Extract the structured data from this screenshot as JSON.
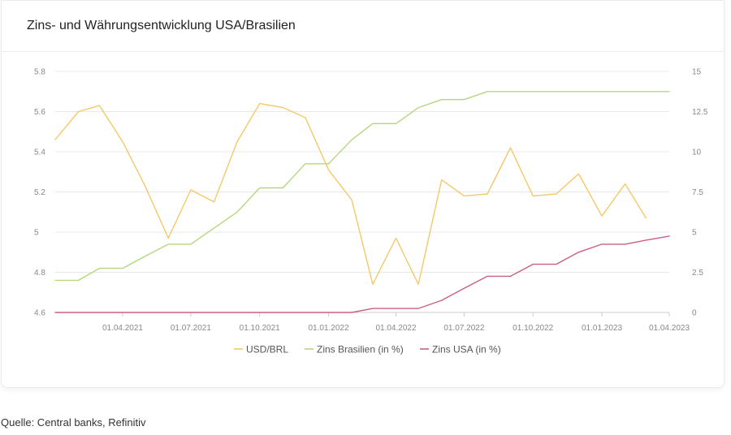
{
  "title": "Zins- und Währungsentwicklung USA/Brasilien",
  "source": "Quelle: Central banks, Refinitiv",
  "chart_data": {
    "type": "line",
    "x_tick_labels": [
      "01.04.2021",
      "01.07.2021",
      "01.10.2021",
      "01.01.2022",
      "01.04.2022",
      "01.07.2022",
      "01.10.2022",
      "01.01.2023",
      "01.04.2023"
    ],
    "x_tick_dates": [
      "2021-04-01",
      "2021-07-01",
      "2021-10-01",
      "2022-01-01",
      "2022-04-01",
      "2022-07-01",
      "2022-10-01",
      "2023-01-01",
      "2023-04-01"
    ],
    "x_range": [
      "2021-01-01",
      "2023-04-01"
    ],
    "y_left": {
      "ylim": [
        4.6,
        5.8
      ],
      "ticks": [
        "4.6",
        "4.8",
        "5",
        "5.2",
        "5.4",
        "5.6",
        "5.8"
      ],
      "tick_values": [
        4.6,
        4.8,
        5.0,
        5.2,
        5.4,
        5.6,
        5.8
      ]
    },
    "y_right": {
      "ylim": [
        0,
        15
      ],
      "ticks": [
        "0",
        "2.5",
        "5",
        "7.5",
        "10",
        "12.5",
        "15"
      ],
      "tick_values": [
        0,
        2.5,
        5,
        7.5,
        10,
        12.5,
        15
      ]
    },
    "grid": true,
    "legend_position": "bottom",
    "series": [
      {
        "name": "USD/BRL",
        "axis": "left",
        "color": "#f5c86a",
        "points": [
          [
            "2021-01-01",
            5.46
          ],
          [
            "2021-02-01",
            5.6
          ],
          [
            "2021-03-01",
            5.63
          ],
          [
            "2021-04-01",
            5.45
          ],
          [
            "2021-05-01",
            5.23
          ],
          [
            "2021-06-01",
            4.97
          ],
          [
            "2021-07-01",
            5.21
          ],
          [
            "2021-08-01",
            5.15
          ],
          [
            "2021-09-01",
            5.45
          ],
          [
            "2021-10-01",
            5.64
          ],
          [
            "2021-11-01",
            5.62
          ],
          [
            "2021-12-01",
            5.57
          ],
          [
            "2022-01-01",
            5.31
          ],
          [
            "2022-02-01",
            5.16
          ],
          [
            "2022-03-01",
            4.74
          ],
          [
            "2022-04-01",
            4.97
          ],
          [
            "2022-05-01",
            4.74
          ],
          [
            "2022-06-01",
            5.26
          ],
          [
            "2022-07-01",
            5.18
          ],
          [
            "2022-08-01",
            5.19
          ],
          [
            "2022-09-01",
            5.42
          ],
          [
            "2022-10-01",
            5.18
          ],
          [
            "2022-11-01",
            5.19
          ],
          [
            "2022-12-01",
            5.29
          ],
          [
            "2023-01-01",
            5.08
          ],
          [
            "2023-02-01",
            5.24
          ],
          [
            "2023-03-01",
            5.07
          ]
        ]
      },
      {
        "name": "Zins Brasilien (in %)",
        "axis": "right",
        "color": "#b5d77f",
        "points": [
          [
            "2021-01-01",
            2.0
          ],
          [
            "2021-02-01",
            2.0
          ],
          [
            "2021-03-01",
            2.75
          ],
          [
            "2021-04-01",
            2.75
          ],
          [
            "2021-05-01",
            3.5
          ],
          [
            "2021-06-01",
            4.25
          ],
          [
            "2021-07-01",
            4.25
          ],
          [
            "2021-08-01",
            5.25
          ],
          [
            "2021-09-01",
            6.25
          ],
          [
            "2021-10-01",
            7.75
          ],
          [
            "2021-11-01",
            7.75
          ],
          [
            "2021-12-01",
            9.25
          ],
          [
            "2022-01-01",
            9.25
          ],
          [
            "2022-02-01",
            10.75
          ],
          [
            "2022-03-01",
            11.75
          ],
          [
            "2022-04-01",
            11.75
          ],
          [
            "2022-05-01",
            12.75
          ],
          [
            "2022-06-01",
            13.25
          ],
          [
            "2022-07-01",
            13.25
          ],
          [
            "2022-08-01",
            13.75
          ],
          [
            "2022-09-01",
            13.75
          ],
          [
            "2022-10-01",
            13.75
          ],
          [
            "2022-11-01",
            13.75
          ],
          [
            "2022-12-01",
            13.75
          ],
          [
            "2023-01-01",
            13.75
          ],
          [
            "2023-02-01",
            13.75
          ],
          [
            "2023-03-01",
            13.75
          ],
          [
            "2023-04-01",
            13.75
          ]
        ]
      },
      {
        "name": "Zins USA (in %)",
        "axis": "right",
        "color": "#c9607f",
        "points": [
          [
            "2021-01-01",
            0.0
          ],
          [
            "2022-02-01",
            0.0
          ],
          [
            "2022-03-01",
            0.25
          ],
          [
            "2022-05-01",
            0.25
          ],
          [
            "2022-06-01",
            0.75
          ],
          [
            "2022-07-01",
            1.5
          ],
          [
            "2022-08-01",
            2.25
          ],
          [
            "2022-09-01",
            2.25
          ],
          [
            "2022-10-01",
            3.0
          ],
          [
            "2022-11-01",
            3.0
          ],
          [
            "2022-12-01",
            3.75
          ],
          [
            "2023-01-01",
            4.25
          ],
          [
            "2023-02-01",
            4.25
          ],
          [
            "2023-03-01",
            4.5
          ],
          [
            "2023-04-01",
            4.75
          ]
        ]
      }
    ]
  }
}
